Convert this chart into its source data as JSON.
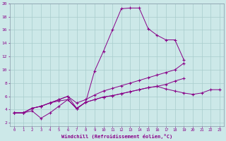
{
  "xlabel": "Windchill (Refroidissement éolien,°C)",
  "bg_color": "#cce8e8",
  "grid_color": "#a8cccc",
  "line_color": "#880088",
  "xlim": [
    -0.5,
    23.5
  ],
  "ylim": [
    1.5,
    20.0
  ],
  "xticks": [
    0,
    1,
    2,
    3,
    4,
    5,
    6,
    7,
    8,
    9,
    10,
    11,
    12,
    13,
    14,
    15,
    16,
    17,
    18,
    19,
    20,
    21,
    22,
    23
  ],
  "yticks": [
    2,
    4,
    6,
    8,
    10,
    12,
    14,
    16,
    18,
    20
  ],
  "series": [
    [
      3.5,
      3.5,
      4.2,
      4.5,
      5.0,
      5.3,
      5.5,
      4.1,
      5.1,
      9.8,
      12.8,
      16.0,
      19.2,
      19.3,
      19.3,
      16.2,
      15.2,
      14.5,
      14.5,
      11.5,
      null,
      null,
      null,
      null
    ],
    [
      3.5,
      3.5,
      4.2,
      4.5,
      5.0,
      5.5,
      6.0,
      5.0,
      5.5,
      6.2,
      6.8,
      7.2,
      7.6,
      8.0,
      8.4,
      8.8,
      9.2,
      9.6,
      10.0,
      11.0,
      null,
      null,
      null,
      null
    ],
    [
      3.5,
      3.5,
      4.2,
      4.5,
      5.0,
      5.5,
      6.0,
      4.2,
      5.1,
      5.5,
      5.9,
      6.1,
      6.4,
      6.7,
      7.0,
      7.3,
      7.5,
      7.8,
      8.3,
      8.7,
      null,
      null,
      null,
      null
    ],
    [
      3.5,
      3.5,
      3.8,
      2.7,
      3.5,
      4.5,
      5.5,
      4.2,
      5.1,
      5.5,
      5.9,
      6.1,
      6.4,
      6.7,
      7.0,
      7.3,
      7.5,
      7.1,
      6.8,
      6.5,
      6.3,
      6.5,
      7.0,
      7.0
    ]
  ]
}
